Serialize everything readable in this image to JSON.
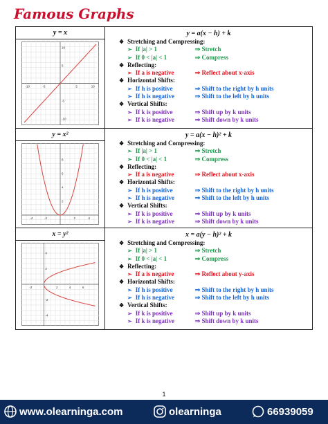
{
  "header": {
    "title": "Famous Graphs"
  },
  "rows": [
    {
      "label": "y = x",
      "graph": {
        "xticks": [
          -10,
          -5,
          5,
          10
        ],
        "yticks": [
          -10,
          -5,
          5,
          10
        ]
      },
      "equation": "y = a(x − h) + k",
      "sections": [
        {
          "heading": "Stretching and Compressing:",
          "items": [
            {
              "condition": "If |a| > 1",
              "result": "⇒  Stretch"
            },
            {
              "condition": "If 0 < |a| < 1",
              "result": "⇒  Compress"
            }
          ]
        },
        {
          "heading": "Reflecting:",
          "items": [
            {
              "condition": "If a is negative",
              "result": "⇒  Reflect about x-axis"
            }
          ]
        },
        {
          "heading": "Horizontal Shifts:",
          "items": [
            {
              "condition": "If h is positive",
              "result": "⇒  Shift to the right by h units"
            },
            {
              "condition": "If h is negative",
              "result": "⇒  Shift to the left by h units"
            }
          ]
        },
        {
          "heading": "Vertical Shifts:",
          "items": [
            {
              "condition": "If k is positive",
              "result": "⇒  Shift up by k units"
            },
            {
              "condition": "If k is negative",
              "result": "⇒  Shift down by k units"
            }
          ]
        }
      ]
    },
    {
      "label": "y = x²",
      "graph": {
        "xticks": [
          -4,
          -2,
          2,
          4
        ],
        "yticks": [
          2,
          4,
          6,
          8
        ]
      },
      "equation": "y = a(x − h)² + k",
      "sections": [
        {
          "heading": "Stretching and Compressing:",
          "items": [
            {
              "condition": "If |a| > 1",
              "result": "⇒  Stretch"
            },
            {
              "condition": "If 0 < |a| < 1",
              "result": "⇒  Compress"
            }
          ]
        },
        {
          "heading": "Reflecting:",
          "items": [
            {
              "condition": "If a is negative",
              "result": "⇒  Reflect about x-axis"
            }
          ]
        },
        {
          "heading": "Horizontal Shifts:",
          "items": [
            {
              "condition": "If h is positive",
              "result": "⇒  Shift to the right by h units"
            },
            {
              "condition": "If h is negative",
              "result": "⇒  Shift to the left by h units"
            }
          ]
        },
        {
          "heading": "Vertical Shifts:",
          "items": [
            {
              "condition": "If k is positive",
              "result": "⇒  Shift up by k units"
            },
            {
              "condition": "If k is negative",
              "result": "⇒  Shift down by k units"
            }
          ]
        }
      ]
    },
    {
      "label": "x = y²",
      "graph": {
        "xticks": [
          -2,
          2,
          4,
          6
        ],
        "yticks": [
          -4,
          -2,
          2,
          4
        ]
      },
      "equation": "x = a(y − h)² + k",
      "sections": [
        {
          "heading": "Stretching and Compressing:",
          "items": [
            {
              "condition": "If |a| > 1",
              "result": "⇒  Stretch"
            },
            {
              "condition": "If 0 < |a| < 1",
              "result": "⇒  Compress"
            }
          ]
        },
        {
          "heading": "Reflecting:",
          "items": [
            {
              "condition": "If a is negative",
              "result": "⇒  Reflect about y-axis"
            }
          ]
        },
        {
          "heading": "Horizontal Shifts:",
          "items": [
            {
              "condition": "If h is positive",
              "result": "⇒  Shift to the right by h units"
            },
            {
              "condition": "If h is negative",
              "result": "⇒  Shift to the left by h units"
            }
          ]
        },
        {
          "heading": "Vertical Shifts:",
          "items": [
            {
              "condition": "If k is positive",
              "result": "⇒  Shift up by k units"
            },
            {
              "condition": "If k is negative",
              "result": "⇒  Shift down by k units"
            }
          ]
        }
      ]
    }
  ],
  "footer": {
    "page": "1",
    "website": "www.olearninga.com",
    "social": "olearninga",
    "phone": "66939059"
  }
}
